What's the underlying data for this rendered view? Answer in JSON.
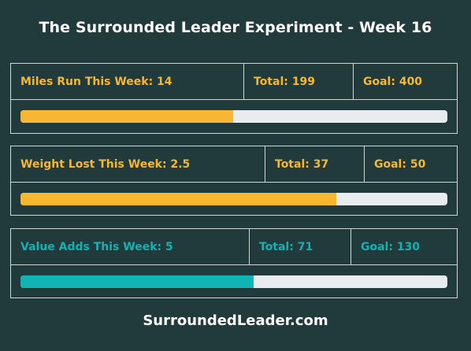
{
  "title": "The Surrounded Leader Experiment - Week 16",
  "footer": "SurroundedLeader.com",
  "colors": {
    "background": "#213a3b",
    "border": "#cfd8d8",
    "track": "#e9ecef",
    "orange": "#f7b731",
    "teal": "#11b3b3"
  },
  "panels": [
    {
      "week_label": "Miles Run This Week: 14",
      "total_label": "Total: 199",
      "goal_label": "Goal: 400",
      "progress_fraction": 0.4975,
      "color": "#f7b731"
    },
    {
      "week_label": "Weight Lost This Week: 2.5",
      "total_label": "Total: 37",
      "goal_label": "Goal: 50",
      "progress_fraction": 0.74,
      "color": "#f7b731"
    },
    {
      "week_label": "Value Adds This Week: 5",
      "total_label": "Total: 71",
      "goal_label": "Goal: 130",
      "progress_fraction": 0.546,
      "color": "#11b3b3"
    }
  ]
}
